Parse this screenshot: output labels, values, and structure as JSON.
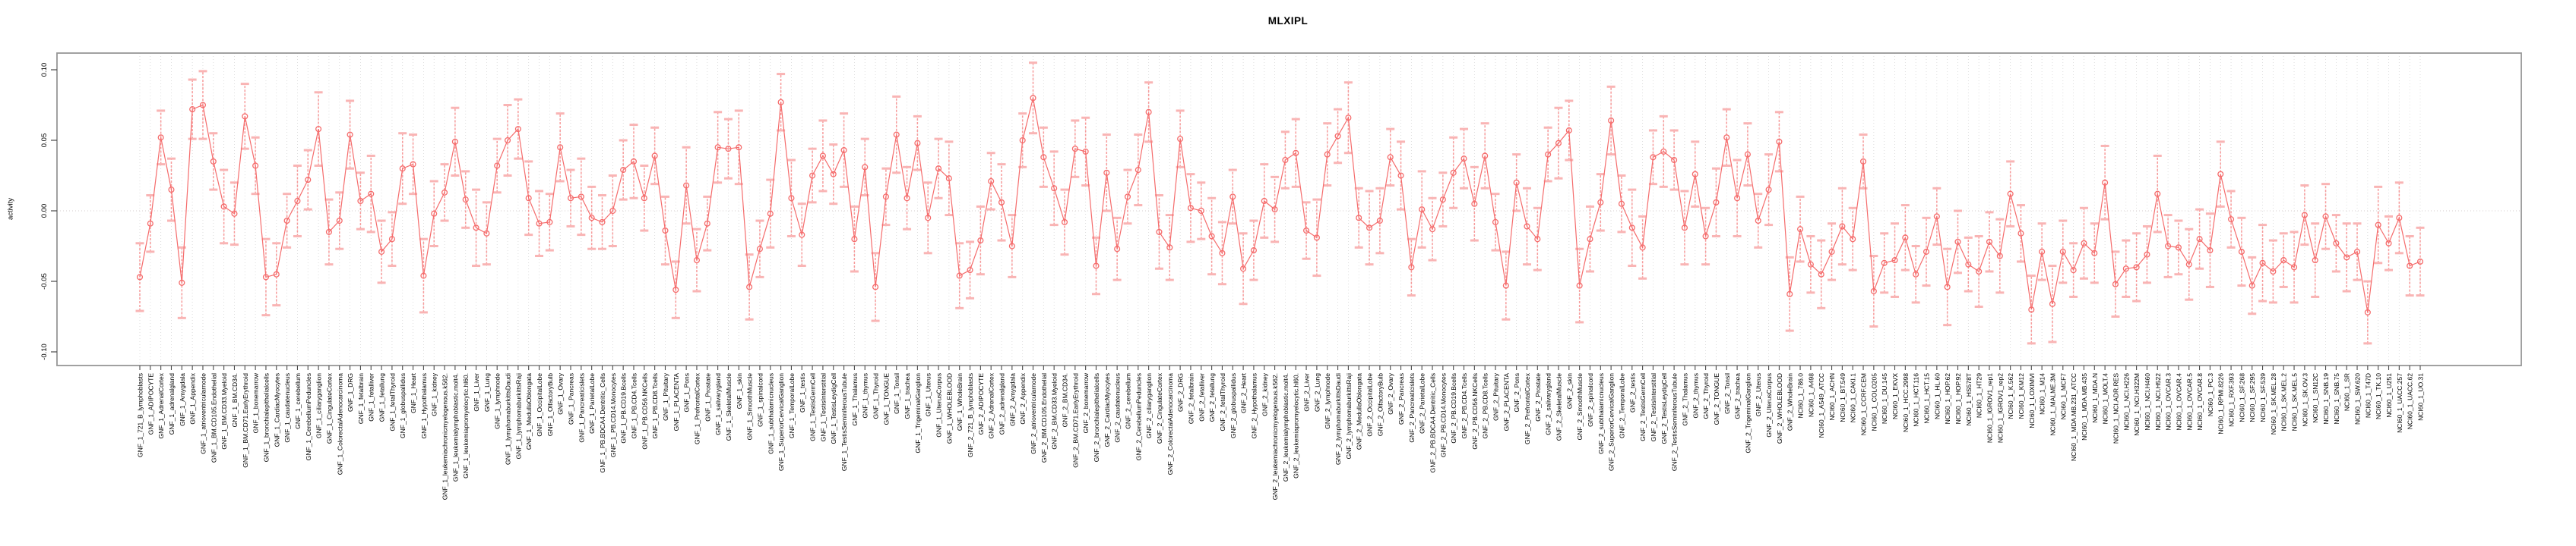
{
  "page": {
    "background": "#ffffff"
  },
  "chart_data": {
    "type": "line",
    "title": "MLXIPL",
    "ylabel": "activity",
    "xlabel": "",
    "ylim": [
      -0.112,
      0.112
    ],
    "y_ticks": [
      0.1,
      0.05,
      0.0,
      -0.05,
      -0.1
    ],
    "grid": "vertical-dotted-per-category",
    "zero_line": true,
    "legend": "none",
    "point_style": "open-circle-with-error-bars",
    "colors": {
      "series": "#f56c6c",
      "error_stem": "#f79b9b",
      "error_cap": "#f9b4b4",
      "gridline": "#d6d6d6",
      "zero_line": "#d6cccc",
      "axis_box": "#979797",
      "tick": "#4a4a4a",
      "text": "#000000"
    },
    "categories": [
      "GNF_1_721_B_lymphoblasts",
      "GNF_1_ADIPOCYTE",
      "GNF_1_AdrenalCortex",
      "GNF_1_adrenalgland",
      "GNF_1_Amygdala",
      "GNF_1_Appendix",
      "GNF_1_atrioventricularnode",
      "GNF_1_BM.CD105.Endothelial",
      "GNF_1_BM.CD33.Myeloid",
      "GNF_1_BM.CD34.",
      "GNF_1_BM.CD71.EarlyErythroid",
      "GNF_1_bonemarrow",
      "GNF_1_bronchialepithelialcells",
      "GNF_1_CardiacMyocytes",
      "GNF_1_caudatenucleus",
      "GNF_1_cerebellum",
      "GNF_1_CerebellumPeduncles",
      "GNF_1_ciliaryganglion",
      "GNF_1_CingulateCortex",
      "GNF_1_ColorectalAdenocarcinoma",
      "GNF_1_DRG",
      "GNF_1_fetalbrain",
      "GNF_1_fetalliver",
      "GNF_1_fetallung",
      "GNF_1_fetalThyroid",
      "GNF_1_globuspallidus",
      "GNF_1_Heart",
      "GNF_1_Hypothalamus",
      "GNF_1_kidney",
      "GNF_1_leukemiachronicmyelogenous.k562.",
      "GNF_1_leukemialymphoblastic.molt4.",
      "GNF_1_leukemiapromyelocytic.hl60.",
      "GNF_1_Liver",
      "GNF_1_Lung",
      "GNF_1_lymphnode",
      "GNF_1_lymphomaburkittsDaudi",
      "GNF_1_lymphomaburkittsRaji",
      "GNF_1_MedullaOblongata",
      "GNF_1_OccipitalLobe",
      "GNF_1_OlfactoryBulb",
      "GNF_1_Ovary",
      "GNF_1_Pancreas",
      "GNF_1_Pancreaticislets",
      "GNF_1_ParietalLobe",
      "GNF_1_PB.BDCA4.Dentritic_Cells",
      "GNF_1_PB.CD14.Monocytes",
      "GNF_1_PB.CD19.Bcells",
      "GNF_1_PB.CD4.Tcells",
      "GNF_1_PB.CD56.NKCells",
      "GNF_1_PB.CD8.Tcells",
      "GNF_1_Pituitary",
      "GNF_1_PLACENTA",
      "GNF_1_Pons",
      "GNF_1_PrefrontalCortex",
      "GNF_1_Prostate",
      "GNF_1_salivarygland",
      "GNF_1_SkeletalMuscle",
      "GNF_1_skin",
      "GNF_1_SmoothMuscle",
      "GNF_1_spinalcord",
      "GNF_1_subthalamicnucleus",
      "GNF_1_SuperiorCervicalGanglion",
      "GNF_1_TemporalLobe",
      "GNF_1_testis",
      "GNF_1_TestisGermCell",
      "GNF_1_TestisInterstitial",
      "GNF_1_TestisLeydigCell",
      "GNF_1_TestisSeminiferousTubule",
      "GNF_1_Thalamus",
      "GNF_1_thymus",
      "GNF_1_Thyroid",
      "GNF_1_TONGUE",
      "GNF_1_Tonsil",
      "GNF_1_trachea",
      "GNF_1_TrigeminalGanglion",
      "GNF_1_Uterus",
      "GNF_1_UterusCorpus",
      "GNF_1_WHOLEBLOOD",
      "GNF_1_WholeBrain",
      "GNF_2_721_B_lymphoblasts",
      "GNF_2_ADIPOCYTE",
      "GNF_2_AdrenalCortex",
      "GNF_2_adrenalgland",
      "GNF_2_Amygdala",
      "GNF_2_Appendix",
      "GNF_2_atrioventricularnode",
      "GNF_2_BM.CD105.Endothelial",
      "GNF_2_BM.CD33.Myeloid",
      "GNF_2_BM.CD34.",
      "GNF_2_BM.CD71.EarlyErythroid",
      "GNF_2_bonemarrow",
      "GNF_2_bronchialepithelialcells",
      "GNF_2_CardiacMyocytes",
      "GNF_2_caudatenucleus",
      "GNF_2_cerebellum",
      "GNF_2_CerebellumPeduncles",
      "GNF_2_ciliaryganglion",
      "GNF_2_CingulateCortex",
      "GNF_2_ColorectalAdenocarcinoma",
      "GNF_2_DRG",
      "GNF_2_fetalbrain",
      "GNF_2_fetalliver",
      "GNF_2_fetallung",
      "GNF_2_fetalThyroid",
      "GNF_2_globuspallidus",
      "GNF_2_Heart",
      "GNF_2_Hypothalamus",
      "GNF_2_kidney",
      "GNF_2_leukemiachronicmyelogenous.k562.",
      "GNF_2_leukemialymphoblastic.molt4.",
      "GNF_2_leukemiapromyelocytic.hl60.",
      "GNF_2_Liver",
      "GNF_2_Lung",
      "GNF_2_lymphnode",
      "GNF_2_lymphomaburkittsDaudi",
      "GNF_2_lymphomaburkittsRaji",
      "GNF_2_MedullaOblongata",
      "GNF_2_OccipitalLobe",
      "GNF_2_OlfactoryBulb",
      "GNF_2_Ovary",
      "GNF_2_Pancreas",
      "GNF_2_Pancreaticislets",
      "GNF_2_ParietalLobe",
      "GNF_2_PB.BDCA4.Dentritic_Cells",
      "GNF_2_PB.CD14.Monocytes",
      "GNF_2_PB.CD19.Bcells",
      "GNF_2_PB.CD4.Tcells",
      "GNF_2_PB.CD56.NKCells",
      "GNF_2_PB.CD8.Tcells",
      "GNF_2_Pituitary",
      "GNF_2_PLACENTA",
      "GNF_2_Pons",
      "GNF_2_PrefrontalCortex",
      "GNF_2_Prostate",
      "GNF_2_salivarygland",
      "GNF_2_SkeletalMuscle",
      "GNF_2_skin",
      "GNF_2_SmoothMuscle",
      "GNF_2_spinalcord",
      "GNF_2_subthalamicnucleus",
      "GNF_2_SuperiorCervicalGanglion",
      "GNF_2_TemporalLobe",
      "GNF_2_testis",
      "GNF_2_TestisGermCell",
      "GNF_2_TestisInterstitial",
      "GNF_2_TestisLeydigCell",
      "GNF_2_TestisSeminiferousTubule",
      "GNF_2_Thalamus",
      "GNF_2_thymus",
      "GNF_2_Thyroid",
      "GNF_2_TONGUE",
      "GNF_2_Tonsil",
      "GNF_2_trachea",
      "GNF_2_TrigeminalGanglion",
      "GNF_2_Uterus",
      "GNF_2_UterusCorpus",
      "GNF_2_WHOLEBLOOD",
      "GNF_2_WholeBrain",
      "NCI60_1_786.0",
      "NCI60_1_A498",
      "NCI60_1_A549_ATCC",
      "NCI60_1_ACHN",
      "NCI60_1_BT.549",
      "NCI60_1_CAKI.1",
      "NCI60_1_CCRF.CEM",
      "NCI60_1_COLO205",
      "NCI60_1_DU.145",
      "NCI60_1_EKVX",
      "NCI60_1_HCC.2998",
      "NCI60_1_HCT.116",
      "NCI60_1_HCT.15",
      "NCI60_1_HL.60",
      "NCI60_1_HOP.62",
      "NCI60_1_HOP.92",
      "NCI60_1_HS578T",
      "NCI60_1_HT29",
      "NCI60_1_IGROV1_rep1",
      "NCI60_1_IGROV1_rep2",
      "NCI60_1_K.562",
      "NCI60_1_KM12",
      "NCI60_1_LOXIMVI",
      "NCI60_1_M14",
      "NCI60_1_MALME.3M",
      "NCI60_1_MCF7",
      "NCI60_1_MDA.MB.231_ATCC",
      "NCI60_1_MDA.MB.435",
      "NCI60_1_MDA.N",
      "NCI60_1_MOLT.4",
      "NCI60_1_NCI.ADR.RES",
      "NCI60_1_NCI.H226",
      "NCI60_1_NCI.H322M",
      "NCI60_1_NCI.H460",
      "NCI60_1_NCI.H522",
      "NCI60_1_OVCAR.3",
      "NCI60_1_OVCAR.4",
      "NCI60_1_OVCAR.5",
      "NCI60_1_OVCAR.8",
      "NCI60_1_PC.3",
      "NCI60_1_RPMI.8226",
      "NCI60_1_RXF.393",
      "NCI60_1_SF.268",
      "NCI60_1_SF.295",
      "NCI60_1_SF.539",
      "NCI60_1_SK.MEL.28",
      "NCI60_1_SK.MEL.2",
      "NCI60_1_SK.MEL.5",
      "NCI60_1_SK.OV.3",
      "NCI60_1_SN12C",
      "NCI60_1_SNB.19",
      "NCI60_1_SNB.75",
      "NCI60_1_SR",
      "NCI60_1_SW.620",
      "NCI60_1_T47D",
      "NCI60_1_TK.10",
      "NCI60_1_U251",
      "NCI60_1_UACC.257",
      "NCI60_1_UACC.62",
      "NCI60_1_UO.31"
    ],
    "values": [
      -0.047,
      -0.009,
      0.052,
      0.015,
      -0.051,
      0.072,
      0.075,
      0.035,
      0.003,
      -0.002,
      0.067,
      0.032,
      -0.047,
      -0.045,
      -0.007,
      0.007,
      0.022,
      0.058,
      -0.015,
      -0.007,
      0.054,
      0.007,
      0.012,
      -0.029,
      -0.02,
      0.03,
      0.033,
      -0.046,
      -0.002,
      0.013,
      0.049,
      0.008,
      -0.012,
      -0.016,
      0.032,
      0.05,
      0.058,
      0.009,
      -0.009,
      -0.008,
      0.045,
      0.009,
      0.01,
      -0.005,
      -0.008,
      0.0,
      0.029,
      0.035,
      0.009,
      0.039,
      -0.014,
      -0.056,
      0.018,
      -0.035,
      -0.009,
      0.045,
      0.044,
      0.045,
      -0.054,
      -0.027,
      -0.002,
      0.077,
      0.009,
      -0.017,
      0.025,
      0.039,
      0.026,
      0.043,
      -0.02,
      0.031,
      -0.054,
      0.01,
      0.054,
      0.009,
      0.048,
      -0.005,
      0.03,
      0.023,
      -0.046,
      -0.042,
      -0.021,
      0.021,
      0.006,
      -0.025,
      0.05,
      0.08,
      0.038,
      0.016,
      -0.008,
      0.044,
      0.042,
      -0.039,
      0.027,
      -0.027,
      0.01,
      0.029,
      0.07,
      -0.015,
      -0.026,
      0.051,
      0.002,
      0.0,
      -0.018,
      -0.03,
      0.01,
      -0.041,
      -0.028,
      0.007,
      0.001,
      0.036,
      0.041,
      -0.014,
      -0.019,
      0.04,
      0.053,
      0.066,
      -0.005,
      -0.012,
      -0.007,
      0.038,
      0.025,
      -0.04,
      0.001,
      -0.013,
      0.008,
      0.027,
      0.037,
      0.005,
      0.039,
      -0.008,
      -0.053,
      0.02,
      -0.011,
      -0.02,
      0.04,
      0.048,
      0.057,
      -0.053,
      -0.02,
      0.006,
      0.064,
      0.005,
      -0.012,
      -0.026,
      0.038,
      0.042,
      0.036,
      -0.012,
      0.026,
      -0.018,
      0.006,
      0.052,
      0.009,
      0.04,
      -0.007,
      0.015,
      0.049,
      -0.059,
      -0.013,
      -0.038,
      -0.045,
      -0.029,
      -0.011,
      -0.02,
      0.035,
      -0.057,
      -0.037,
      -0.035,
      -0.019,
      -0.045,
      -0.029,
      -0.004,
      -0.054,
      -0.022,
      -0.038,
      -0.043,
      -0.022,
      -0.032,
      0.012,
      -0.016,
      -0.07,
      -0.029,
      -0.066,
      -0.029,
      -0.042,
      -0.023,
      -0.03,
      0.02,
      -0.052,
      -0.041,
      -0.04,
      -0.031,
      0.012,
      -0.025,
      -0.026,
      -0.038,
      -0.02,
      -0.028,
      0.026,
      -0.006,
      -0.029,
      -0.053,
      -0.037,
      -0.043,
      -0.035,
      -0.04,
      -0.003,
      -0.035,
      -0.004,
      -0.023,
      -0.033,
      -0.029,
      -0.072,
      -0.01,
      -0.023,
      -0.005,
      -0.039,
      -0.036
    ],
    "errors": [
      0.024,
      0.02,
      0.019,
      0.022,
      0.025,
      0.021,
      0.024,
      0.02,
      0.026,
      0.022,
      0.023,
      0.02,
      0.027,
      0.022,
      0.019,
      0.025,
      0.021,
      0.026,
      0.023,
      0.02,
      0.024,
      0.02,
      0.027,
      0.022,
      0.019,
      0.025,
      0.021,
      0.026,
      0.023,
      0.02,
      0.024,
      0.02,
      0.027,
      0.022,
      0.019,
      0.025,
      0.021,
      0.026,
      0.023,
      0.02,
      0.024,
      0.02,
      0.027,
      0.022,
      0.019,
      0.025,
      0.021,
      0.026,
      0.023,
      0.02,
      0.024,
      0.02,
      0.027,
      0.022,
      0.019,
      0.025,
      0.021,
      0.026,
      0.023,
      0.02,
      0.024,
      0.02,
      0.027,
      0.022,
      0.019,
      0.025,
      0.021,
      0.026,
      0.023,
      0.02,
      0.024,
      0.02,
      0.027,
      0.022,
      0.019,
      0.025,
      0.021,
      0.026,
      0.023,
      0.02,
      0.024,
      0.02,
      0.027,
      0.022,
      0.019,
      0.025,
      0.021,
      0.026,
      0.023,
      0.02,
      0.024,
      0.02,
      0.027,
      0.022,
      0.019,
      0.025,
      0.021,
      0.026,
      0.023,
      0.02,
      0.024,
      0.02,
      0.027,
      0.022,
      0.019,
      0.025,
      0.021,
      0.026,
      0.023,
      0.02,
      0.024,
      0.02,
      0.027,
      0.022,
      0.019,
      0.025,
      0.021,
      0.026,
      0.023,
      0.02,
      0.024,
      0.02,
      0.027,
      0.022,
      0.019,
      0.025,
      0.021,
      0.026,
      0.023,
      0.02,
      0.024,
      0.02,
      0.027,
      0.022,
      0.019,
      0.025,
      0.021,
      0.026,
      0.023,
      0.02,
      0.024,
      0.02,
      0.027,
      0.022,
      0.019,
      0.025,
      0.021,
      0.026,
      0.023,
      0.02,
      0.024,
      0.02,
      0.027,
      0.022,
      0.019,
      0.025,
      0.021,
      0.026,
      0.023,
      0.02,
      0.024,
      0.02,
      0.027,
      0.022,
      0.019,
      0.025,
      0.021,
      0.026,
      0.023,
      0.02,
      0.024,
      0.02,
      0.027,
      0.022,
      0.019,
      0.025,
      0.021,
      0.026,
      0.023,
      0.02,
      0.024,
      0.02,
      0.027,
      0.022,
      0.019,
      0.025,
      0.021,
      0.026,
      0.023,
      0.02,
      0.024,
      0.02,
      0.027,
      0.022,
      0.019,
      0.025,
      0.021,
      0.026,
      0.023,
      0.02,
      0.024,
      0.02,
      0.027,
      0.022,
      0.019,
      0.025,
      0.021,
      0.026,
      0.023,
      0.02,
      0.024,
      0.02,
      0.022,
      0.027,
      0.019,
      0.025,
      0.021,
      0.024
    ]
  }
}
